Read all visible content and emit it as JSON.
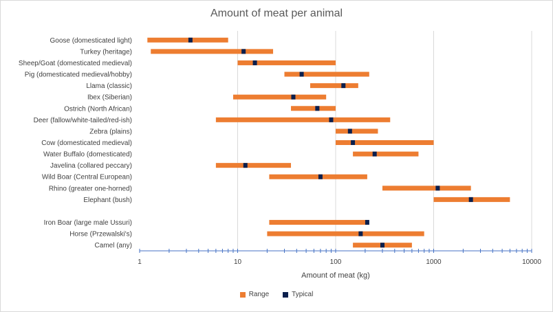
{
  "chart_data": {
    "type": "bar",
    "orientation": "horizontal",
    "title": "Amount of meat per animal",
    "xlabel": "Amount of meat (kg)",
    "xscale": "log",
    "xlim": [
      1,
      10000
    ],
    "xticks": [
      "1",
      "10",
      "100",
      "1000",
      "10000"
    ],
    "grid": true,
    "legend_position": "bottom",
    "legend": [
      "Range",
      "Typical"
    ],
    "colors": {
      "range": "#ed7d31",
      "typical": "#0b1f4d",
      "grid": "#d9d9d9",
      "axis": "#4472c4"
    },
    "categories": [
      "Goose (domesticated light)",
      "Turkey (heritage)",
      "Sheep/Goat (domesticated medieval)",
      "Pig (domesticated medieval/hobby)",
      "Llama (classic)",
      "Ibex (Siberian)",
      "Ostrich (North African)",
      "Deer (fallow/white-tailed/red-ish)",
      "Zebra (plains)",
      "Cow (domesticated medieval)",
      "Water Buffalo (domesticated)",
      "Javelina (collared peccary)",
      "Wild Boar (Central European)",
      "Rhino (greater one-horned)",
      "Elephant (bush)",
      "",
      "Iron Boar (large male Ussuri)",
      "Horse (Przewalski's)",
      "Camel (any)"
    ],
    "series": [
      {
        "name": "Range",
        "values": [
          [
            1.2,
            8
          ],
          [
            1.3,
            23
          ],
          [
            10,
            100
          ],
          [
            30,
            220
          ],
          [
            55,
            170
          ],
          [
            9,
            80
          ],
          [
            35,
            100
          ],
          [
            6,
            360
          ],
          [
            100,
            270
          ],
          [
            100,
            1000
          ],
          [
            150,
            700
          ],
          [
            6,
            35
          ],
          [
            21,
            210
          ],
          [
            300,
            2400
          ],
          [
            1000,
            6000
          ],
          null,
          [
            21,
            210
          ],
          [
            20,
            800
          ],
          [
            150,
            600
          ]
        ]
      },
      {
        "name": "Typical",
        "values": [
          3.3,
          11.5,
          15,
          45,
          120,
          37,
          65,
          90,
          140,
          150,
          250,
          12,
          70,
          1100,
          2400,
          null,
          210,
          180,
          300
        ]
      }
    ]
  }
}
